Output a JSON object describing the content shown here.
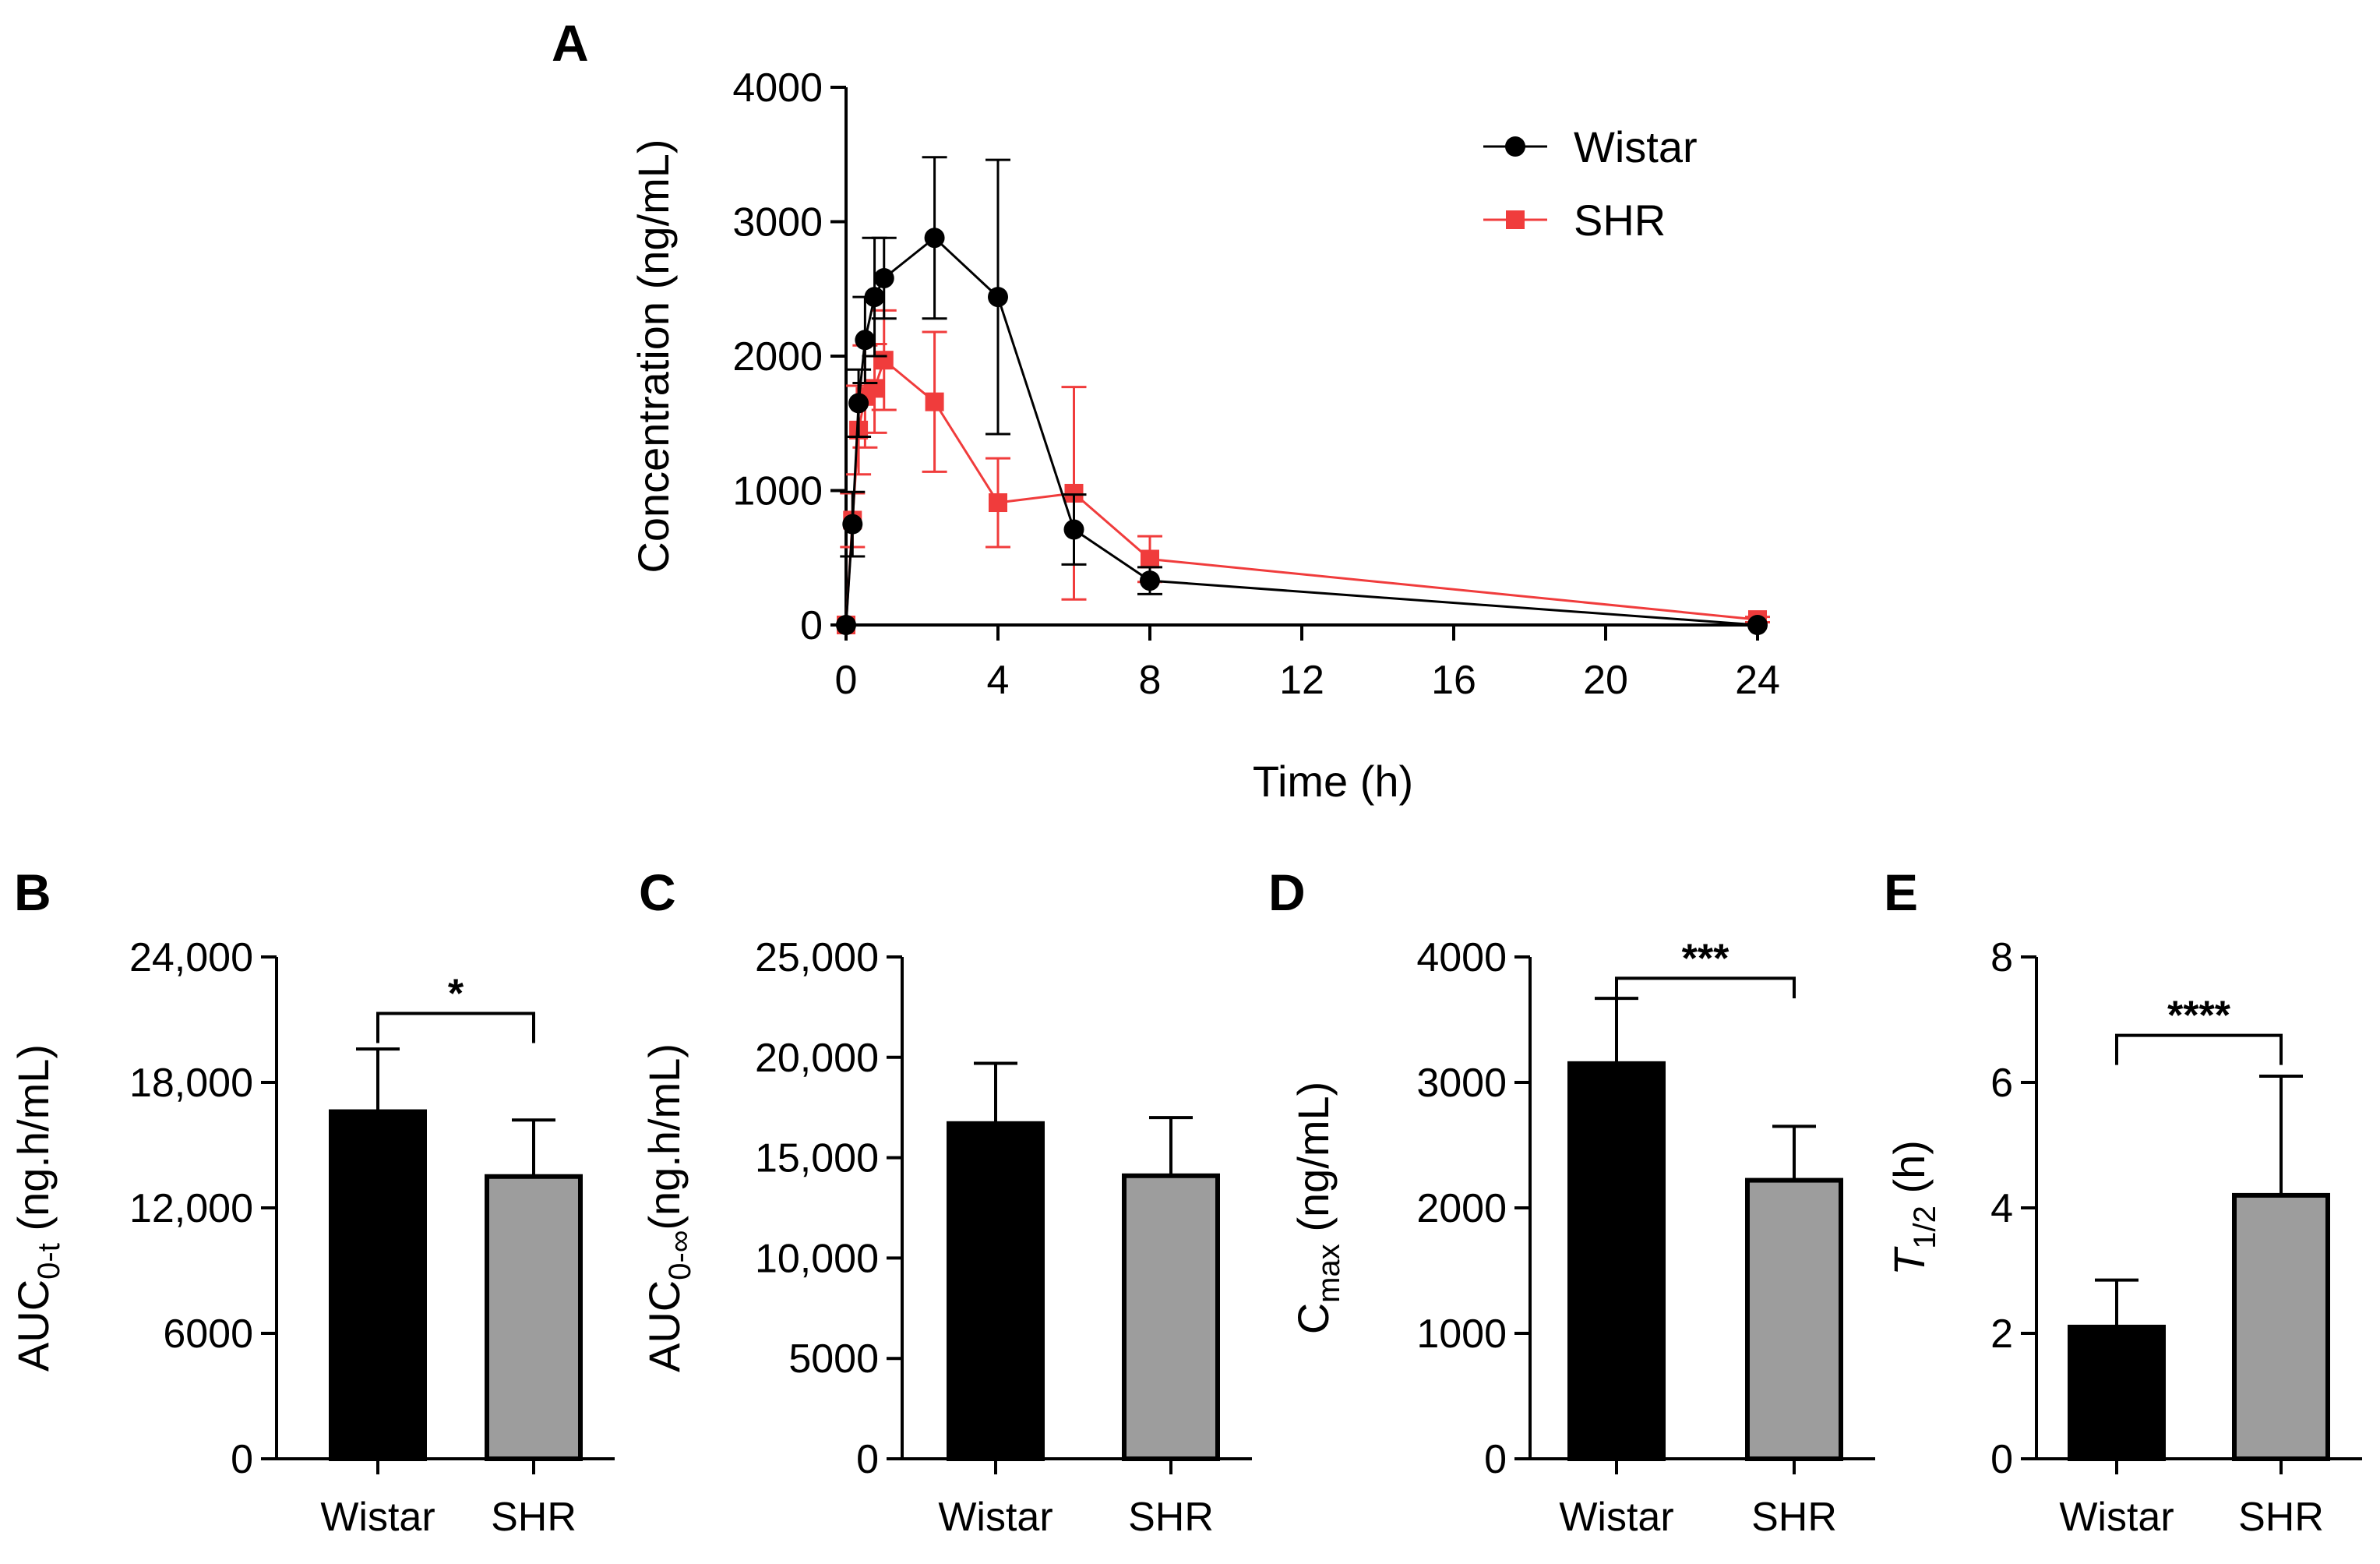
{
  "colors": {
    "wistar": "#000000",
    "shr": "#f03c3c",
    "bar_wistar": "#000000",
    "bar_shr": "#9d9d9d",
    "axis": "#000000"
  },
  "chart_data": [
    {
      "id": "A",
      "letter": "A",
      "type": "line",
      "xlabel": "Time (h)",
      "ylabel": "Concentration (ng/mL)",
      "xlim": [
        0,
        24
      ],
      "ylim": [
        0,
        4000
      ],
      "xticks": [
        0,
        4,
        8,
        12,
        16,
        20,
        24
      ],
      "yticks": [
        0,
        1000,
        2000,
        3000,
        4000
      ],
      "xtick_labels": [
        "0",
        "4",
        "8",
        "12",
        "16",
        "20",
        "24"
      ],
      "ytick_labels": [
        "0",
        "1000",
        "2000",
        "3000",
        "4000"
      ],
      "legend_position": "top-right",
      "series": [
        {
          "name": "Wistar",
          "marker": "circle",
          "x": [
            0,
            0.17,
            0.33,
            0.5,
            0.75,
            1,
            2.33,
            4,
            6,
            8,
            24
          ],
          "y": [
            0,
            750,
            1650,
            2120,
            2440,
            2580,
            2880,
            2440,
            710,
            330,
            0
          ],
          "err": [
            0,
            240,
            250,
            320,
            440,
            300,
            600,
            1020,
            260,
            100,
            0
          ]
        },
        {
          "name": "SHR",
          "marker": "square",
          "x": [
            0,
            0.17,
            0.33,
            0.5,
            0.75,
            1,
            2.33,
            4,
            6,
            8,
            24
          ],
          "y": [
            0,
            780,
            1450,
            1700,
            1760,
            1970,
            1660,
            910,
            980,
            490,
            40
          ],
          "err": [
            0,
            200,
            330,
            380,
            330,
            370,
            520,
            330,
            790,
            170,
            20
          ]
        }
      ]
    },
    {
      "id": "B",
      "letter": "B",
      "type": "bar",
      "categories": [
        "Wistar",
        "SHR"
      ],
      "values": [
        16600,
        13500
      ],
      "err": [
        3000,
        2700
      ],
      "ylim": [
        0,
        24000
      ],
      "yticks": [
        0,
        6000,
        12000,
        18000,
        24000
      ],
      "ytick_labels": [
        "0",
        "6000",
        "12,000",
        "18,000",
        "24,000"
      ],
      "ylabel": "AUC",
      "ylabel_sub": "0-t",
      "ylabel_suffix": " (ng.h/mL)",
      "significance": "*",
      "sig_anchor": 19600,
      "sig_y": 21300
    },
    {
      "id": "C",
      "letter": "C",
      "type": "bar",
      "categories": [
        "Wistar",
        "SHR"
      ],
      "values": [
        16700,
        14100
      ],
      "err": [
        3000,
        2900
      ],
      "ylim": [
        0,
        25000
      ],
      "yticks": [
        0,
        5000,
        10000,
        15000,
        20000,
        25000
      ],
      "ytick_labels": [
        "0",
        "5000",
        "10,000",
        "15,000",
        "20,000",
        "25,000"
      ],
      "ylabel": "AUC",
      "ylabel_sub": "0-∞",
      "ylabel_suffix": "(ng.h/mL)",
      "significance": "",
      "sig_anchor": 0,
      "sig_y": 0
    },
    {
      "id": "D",
      "letter": "D",
      "type": "bar",
      "categories": [
        "Wistar",
        "SHR"
      ],
      "values": [
        3150,
        2220
      ],
      "err": [
        520,
        430
      ],
      "ylim": [
        0,
        4000
      ],
      "yticks": [
        0,
        1000,
        2000,
        3000,
        4000
      ],
      "ytick_labels": [
        "0",
        "1000",
        "2000",
        "3000",
        "4000"
      ],
      "ylabel": "C",
      "ylabel_sub": "max",
      "ylabel_suffix": " (ng/mL)",
      "significance": "***",
      "sig_anchor": 3670,
      "sig_y": 3830
    },
    {
      "id": "E",
      "letter": "E",
      "type": "bar",
      "categories": [
        "Wistar",
        "SHR"
      ],
      "values": [
        2.1,
        4.2
      ],
      "err": [
        0.75,
        1.9
      ],
      "ylim": [
        0,
        8
      ],
      "yticks": [
        0,
        2,
        4,
        6,
        8
      ],
      "ytick_labels": [
        "0",
        "2",
        "4",
        "6",
        "8"
      ],
      "ylabel": "T",
      "ylabel_sub": "1/2",
      "ylabel_suffix": " (h)",
      "ylabel_italic": true,
      "significance": "****",
      "sig_anchor": 6.1,
      "sig_y": 6.75
    }
  ]
}
